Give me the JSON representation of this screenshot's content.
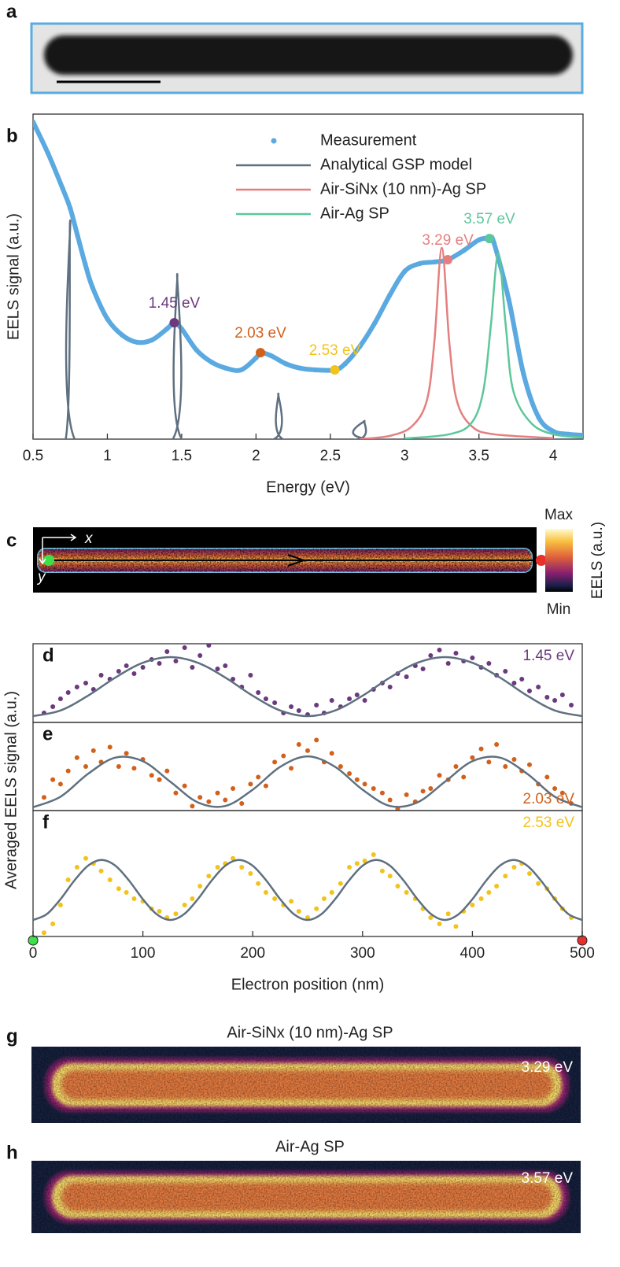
{
  "image_panels": [
    {
      "label": "a"
    },
    {
      "label": "c",
      "axis_x": "x",
      "axis_y": "y",
      "colorbar_max": "Max",
      "colorbar_min": "Min",
      "colorbar_label": "EELS (a.u.)"
    },
    {
      "label": "g",
      "title": "Air-SiNx (10 nm)-Ag SP",
      "energy": "3.29 eV"
    },
    {
      "label": "h",
      "title": "Air-Ag SP",
      "energy": "3.57 eV"
    }
  ],
  "averaged_ylabel": "Averaged EELS signal (a.u.)",
  "chart_data": [
    {
      "type": "line",
      "panel_label": "b",
      "xlabel": "Energy (eV)",
      "ylabel": "EELS signal (a.u.)",
      "xlim": [
        0.5,
        4.2
      ],
      "xticks": [
        0.5,
        1,
        1.5,
        2,
        2.5,
        3,
        3.5,
        4
      ],
      "ylim": [
        0,
        100
      ],
      "legend": "top-right",
      "series": [
        {
          "name": "Measurement",
          "type": "scatter",
          "color": "#5aa9e0",
          "x": [
            0.5,
            0.6,
            0.7,
            0.75,
            0.8,
            0.85,
            0.9,
            1.0,
            1.1,
            1.2,
            1.3,
            1.4,
            1.45,
            1.5,
            1.6,
            1.7,
            1.8,
            1.9,
            2.0,
            2.03,
            2.1,
            2.2,
            2.3,
            2.4,
            2.53,
            2.6,
            2.7,
            2.8,
            2.9,
            3.0,
            3.1,
            3.2,
            3.29,
            3.4,
            3.5,
            3.57,
            3.6,
            3.7,
            3.8,
            3.9,
            4.0,
            4.1,
            4.2
          ],
          "values": [
            97.6,
            88,
            77,
            71,
            62.5,
            54,
            46.7,
            37,
            32,
            29.8,
            30.5,
            33.9,
            35.8,
            33.9,
            27.4,
            23.7,
            21.8,
            21.3,
            25,
            26.6,
            25.7,
            23.2,
            21.8,
            21.3,
            21.3,
            23.2,
            28.6,
            35.8,
            44.3,
            51.6,
            54,
            54.5,
            55.2,
            58.1,
            61.3,
            61.7,
            60.5,
            43,
            20,
            6.8,
            2.4,
            1.5,
            1.2
          ]
        },
        {
          "name": "Analytical GSP model",
          "type": "line",
          "color": "#5f7080",
          "x": [
            0.5,
            0.72,
            0.75,
            0.78,
            1.44,
            1.47,
            1.5,
            2.12,
            2.15,
            2.18,
            2.69,
            2.73,
            2.77,
            4.2
          ],
          "values": [
            0,
            0,
            67.3,
            0,
            0,
            50.8,
            0,
            0,
            14,
            0,
            0,
            5.6,
            0,
            0
          ]
        },
        {
          "name": "Air-SiNx (10 nm)-Ag SP",
          "type": "line",
          "color": "#e57f7f",
          "x": [
            2.7,
            2.9,
            3.05,
            3.15,
            3.2,
            3.25,
            3.3,
            3.35,
            3.45,
            3.6,
            4.0
          ],
          "values": [
            0,
            1,
            4,
            12,
            30,
            58.8,
            30,
            12,
            4,
            1.5,
            0.3
          ]
        },
        {
          "name": "Air-Ag SP",
          "type": "line",
          "color": "#5cc79a",
          "x": [
            3.0,
            3.3,
            3.45,
            3.53,
            3.58,
            3.63,
            3.68,
            3.73,
            3.85,
            4.0,
            4.2
          ],
          "values": [
            0.2,
            1.5,
            5,
            15,
            35,
            57.1,
            35,
            15,
            5,
            1.5,
            0.5
          ]
        }
      ],
      "annotations": [
        {
          "text": "1.45 eV",
          "x": 1.45,
          "y": 35.8,
          "color": "#6b3a7d"
        },
        {
          "text": "2.03 eV",
          "x": 2.03,
          "y": 26.6,
          "color": "#d2601a"
        },
        {
          "text": "2.53 eV",
          "x": 2.53,
          "y": 21.3,
          "color": "#f2c31b"
        },
        {
          "text": "3.29 eV",
          "x": 3.29,
          "y": 55.2,
          "color": "#e57f7f"
        },
        {
          "text": "3.57 eV",
          "x": 3.57,
          "y": 61.7,
          "color": "#5cc79a"
        }
      ]
    },
    {
      "type": "scatter",
      "panel_label": "d",
      "annotation": "1.45 eV",
      "annotation_color": "#6b3a7d",
      "annotation_corner": "top-right",
      "xlim": [
        0,
        500
      ],
      "ylim": [
        0,
        100
      ],
      "series": [
        {
          "type": "scatter",
          "color": "#6b3a7d",
          "x": [
            10,
            18,
            25,
            32,
            40,
            48,
            55,
            62,
            70,
            78,
            85,
            92,
            100,
            108,
            115,
            122,
            130,
            138,
            145,
            152,
            160,
            168,
            175,
            182,
            190,
            198,
            205,
            212,
            220,
            228,
            235,
            242,
            250,
            258,
            265,
            272,
            280,
            288,
            295,
            302,
            310,
            318,
            325,
            332,
            340,
            348,
            355,
            362,
            370,
            378,
            385,
            392,
            400,
            408,
            415,
            422,
            430,
            438,
            445,
            452,
            460,
            468,
            475,
            482,
            490
          ],
          "values": [
            12,
            20,
            30,
            38,
            45,
            50,
            42,
            60,
            55,
            65,
            72,
            62,
            70,
            80,
            75,
            90,
            78,
            95,
            70,
            85,
            98,
            68,
            72,
            55,
            45,
            60,
            38,
            30,
            25,
            12,
            20,
            15,
            10,
            22,
            12,
            28,
            20,
            30,
            35,
            28,
            42,
            50,
            45,
            62,
            58,
            72,
            68,
            85,
            92,
            75,
            88,
            78,
            82,
            70,
            75,
            60,
            65,
            50,
            55,
            40,
            45,
            32,
            28,
            35,
            22
          ]
        },
        {
          "type": "line",
          "color": "#5f7080",
          "x": [
            0,
            25,
            50,
            75,
            100,
            125,
            150,
            175,
            200,
            225,
            250,
            275,
            300,
            325,
            350,
            375,
            400,
            425,
            450,
            475,
            500
          ],
          "values": [
            8,
            15.2,
            33.9,
            57.1,
            75.8,
            83,
            75.8,
            57.1,
            33.9,
            15.2,
            8,
            15.2,
            33.9,
            57.1,
            75.8,
            83,
            75.8,
            57.1,
            33.9,
            15.2,
            8
          ]
        }
      ]
    },
    {
      "type": "scatter",
      "panel_label": "e",
      "annotation": "2.03 eV",
      "annotation_color": "#d2601a",
      "annotation_corner": "bottom-right",
      "xlim": [
        0,
        500
      ],
      "ylim": [
        0,
        100
      ],
      "series": [
        {
          "type": "scatter",
          "color": "#d2601a",
          "x": [
            10,
            18,
            25,
            32,
            40,
            48,
            55,
            62,
            70,
            78,
            85,
            92,
            100,
            108,
            115,
            122,
            130,
            138,
            145,
            152,
            160,
            168,
            175,
            182,
            190,
            198,
            205,
            212,
            220,
            228,
            235,
            242,
            250,
            258,
            265,
            272,
            280,
            288,
            295,
            302,
            310,
            318,
            325,
            332,
            340,
            348,
            355,
            362,
            370,
            378,
            385,
            392,
            400,
            408,
            415,
            422,
            430,
            438,
            445,
            452,
            460,
            468,
            475,
            482,
            490
          ],
          "values": [
            15,
            35,
            30,
            45,
            60,
            50,
            68,
            55,
            72,
            50,
            65,
            48,
            58,
            40,
            35,
            45,
            20,
            28,
            5,
            15,
            10,
            20,
            12,
            25,
            8,
            30,
            38,
            28,
            55,
            62,
            48,
            75,
            68,
            80,
            55,
            65,
            50,
            42,
            35,
            30,
            25,
            20,
            12,
            2,
            18,
            10,
            22,
            25,
            40,
            35,
            50,
            38,
            60,
            70,
            55,
            75,
            50,
            58,
            45,
            52,
            30,
            38,
            25,
            20,
            8
          ]
        },
        {
          "type": "line",
          "color": "#5f7080",
          "x": [
            0,
            25,
            50,
            75,
            100,
            125,
            150,
            175,
            200,
            225,
            250,
            275,
            300,
            325,
            350,
            375,
            400,
            425,
            450,
            475,
            500
          ],
          "values": [
            3.8,
            15.7,
            41.6,
            60.1,
            56.0,
            32.7,
            9.3,
            5.2,
            23.7,
            49.6,
            61.5,
            49.6,
            23.7,
            5.2,
            9.3,
            32.7,
            56.0,
            60.1,
            41.6,
            15.7,
            3.8
          ]
        }
      ]
    },
    {
      "type": "scatter",
      "panel_label": "f",
      "annotation": "2.53 eV",
      "annotation_color": "#f2c31b",
      "annotation_corner": "top-right",
      "xlabel": "Electron position (nm)",
      "xlim": [
        0,
        500
      ],
      "xticks": [
        0,
        100,
        200,
        300,
        400,
        500
      ],
      "ylim": [
        0,
        100
      ],
      "series": [
        {
          "type": "scatter",
          "color": "#f2c31b",
          "x": [
            10,
            18,
            25,
            32,
            40,
            48,
            55,
            62,
            70,
            78,
            85,
            92,
            100,
            108,
            115,
            122,
            130,
            138,
            145,
            152,
            160,
            168,
            175,
            182,
            190,
            198,
            205,
            212,
            220,
            228,
            235,
            242,
            250,
            258,
            265,
            272,
            280,
            288,
            295,
            302,
            310,
            318,
            325,
            332,
            340,
            348,
            355,
            362,
            370,
            378,
            385,
            392,
            400,
            408,
            415,
            422,
            430,
            438,
            445,
            452,
            460,
            468,
            475,
            482,
            490
          ],
          "values": [
            3,
            10,
            25,
            45,
            55,
            62,
            58,
            52,
            45,
            38,
            35,
            30,
            28,
            22,
            20,
            15,
            18,
            25,
            30,
            40,
            48,
            55,
            58,
            62,
            55,
            50,
            42,
            35,
            30,
            25,
            28,
            20,
            15,
            22,
            30,
            35,
            42,
            55,
            58,
            60,
            65,
            52,
            48,
            40,
            35,
            30,
            22,
            15,
            10,
            18,
            8,
            20,
            25,
            30,
            35,
            40,
            48,
            55,
            58,
            50,
            42,
            38,
            30,
            22,
            15
          ]
        },
        {
          "type": "line",
          "color": "#5f7080",
          "x": [
            0,
            12.5,
            25,
            37.5,
            50,
            62.5,
            75,
            87.5,
            100,
            112.5,
            125,
            137.5,
            150,
            162.5,
            175,
            187.5,
            200,
            212.5,
            225,
            237.5,
            250,
            262.5,
            275,
            287.5,
            300,
            312.5,
            325,
            337.5,
            350,
            362.5,
            375,
            387.5,
            400,
            412.5,
            425,
            437.5,
            450,
            462.5,
            475,
            487.5,
            500
          ],
          "values": [
            13.1,
            17.7,
            29.6,
            44.3,
            56.2,
            60.8,
            56.2,
            44.3,
            29.6,
            17.7,
            13.1,
            17.7,
            29.6,
            44.3,
            56.2,
            60.8,
            56.2,
            44.3,
            29.6,
            17.7,
            13.1,
            17.7,
            29.6,
            44.3,
            56.2,
            60.8,
            56.2,
            44.3,
            29.6,
            17.7,
            13.1,
            17.7,
            29.6,
            44.3,
            56.2,
            60.8,
            56.2,
            44.3,
            29.6,
            17.7,
            13.1
          ]
        }
      ]
    }
  ]
}
